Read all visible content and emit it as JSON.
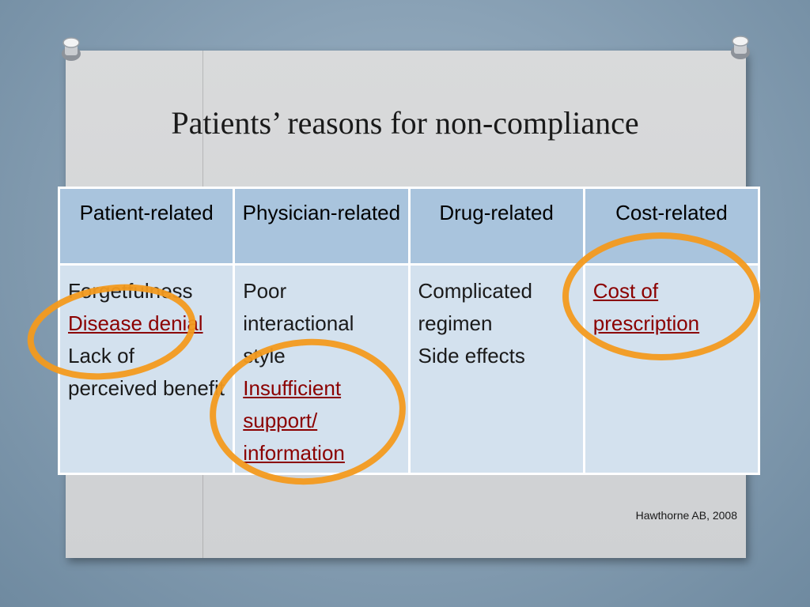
{
  "slide": {
    "title": "Patients’ reasons for non-compliance",
    "credit": "Hawthorne AB, 2008"
  },
  "table": {
    "headers": [
      "Patient-related",
      "Physician-related",
      "Drug-related",
      "Cost-related"
    ],
    "columns": [
      [
        {
          "text": "Forgetfulness",
          "highlight": false
        },
        {
          "text": "Disease denial",
          "highlight": true
        },
        {
          "text": "Lack of perceived benefit",
          "highlight": false
        }
      ],
      [
        {
          "text": "Poor interactional style",
          "highlight": false
        },
        {
          "text": "Insufficient support/ information",
          "highlight": true
        }
      ],
      [
        {
          "text": "Complicated regimen",
          "highlight": false
        },
        {
          "text": "Side effects",
          "highlight": false
        }
      ],
      [
        {
          "text": "Cost of prescription",
          "highlight": true
        }
      ]
    ]
  },
  "colors": {
    "header_bg": "#a9c4dd",
    "cell_bg": "#d3e1ee",
    "highlight_text": "#8b0000",
    "circle": "#f39a1e"
  }
}
